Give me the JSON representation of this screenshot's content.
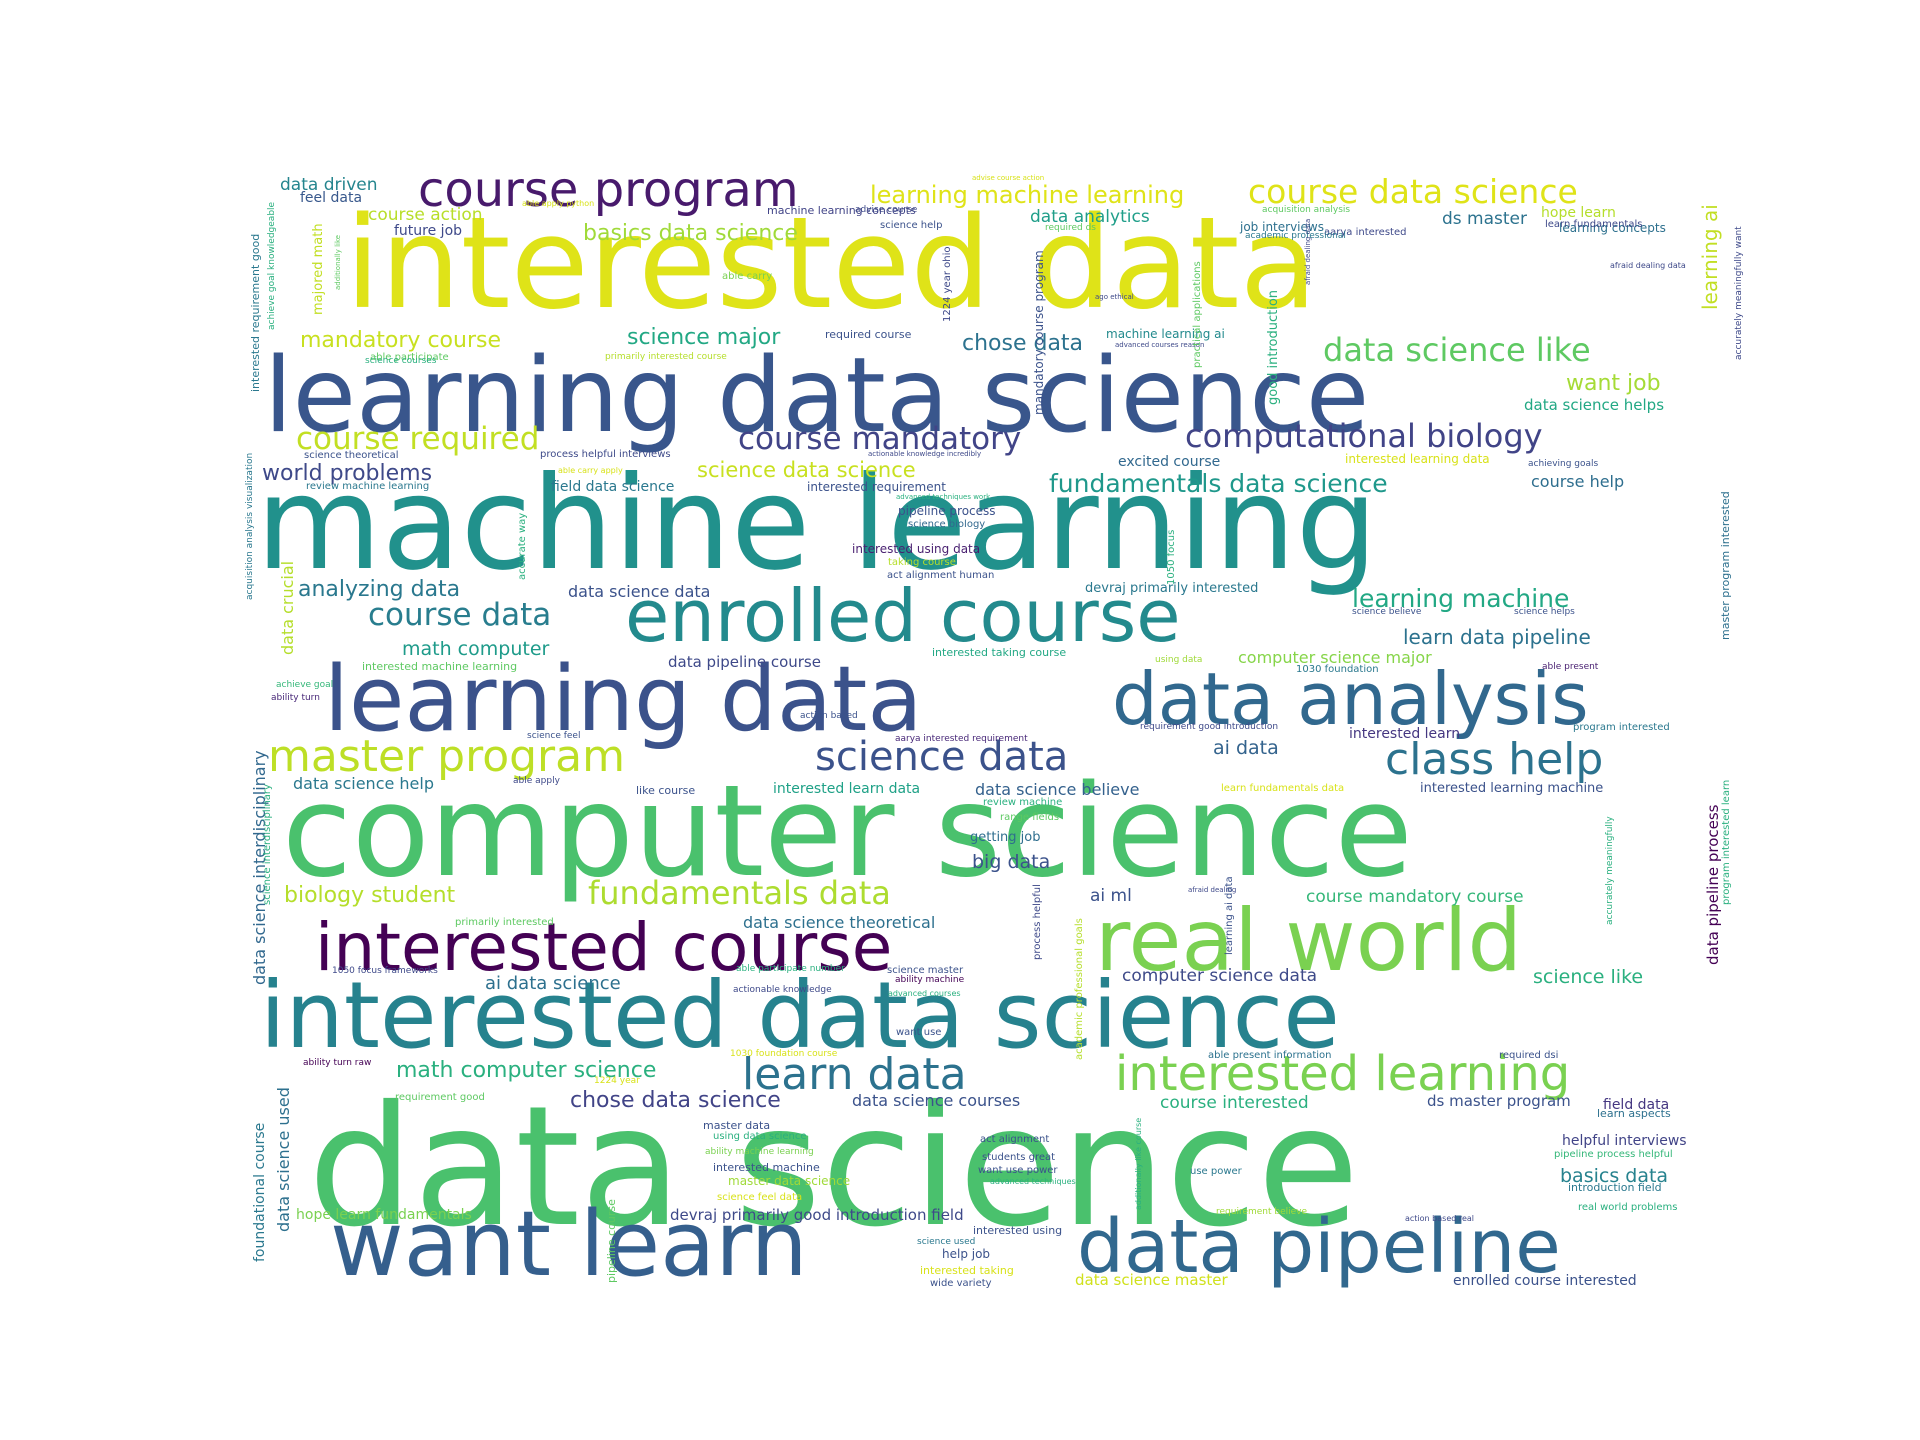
{
  "cloud": {
    "words": [
      {
        "text": "interested data",
        "color": "#dfe318"
      },
      {
        "text": "machine learning",
        "color": "#21918c"
      },
      {
        "text": "computer science",
        "color": "#4ac16d"
      },
      {
        "text": "data science",
        "color": "#4ac16d"
      },
      {
        "text": "learning data science",
        "color": "#39568c"
      },
      {
        "text": "interested data science",
        "color": "#26828e"
      },
      {
        "text": "learning data",
        "color": "#3b528b"
      },
      {
        "text": "want learn",
        "color": "#355f8d"
      },
      {
        "text": "enrolled course",
        "color": "#238a8d"
      },
      {
        "text": "data analysis",
        "color": "#31688e"
      },
      {
        "text": "real world",
        "color": "#7ad151"
      },
      {
        "text": "data pipeline",
        "color": "#31688e"
      },
      {
        "text": "interested course",
        "color": "#440154"
      },
      {
        "text": "course program",
        "color": "#481a6c"
      },
      {
        "text": "interested learning",
        "color": "#7ad151"
      },
      {
        "text": "master program",
        "color": "#bddf26"
      },
      {
        "text": "learn data",
        "color": "#2c728e"
      },
      {
        "text": "science data",
        "color": "#3b528b"
      },
      {
        "text": "class help",
        "color": "#2c728e"
      },
      {
        "text": "course data science",
        "color": "#dfe318"
      },
      {
        "text": "data science like",
        "color": "#5ec962"
      },
      {
        "text": "computational biology",
        "color": "#414487"
      },
      {
        "text": "course mandatory",
        "color": "#414487"
      },
      {
        "text": "course required",
        "color": "#c2df23"
      },
      {
        "text": "fundamentals data",
        "color": "#addc30"
      },
      {
        "text": "course data",
        "color": "#287d8e"
      },
      {
        "text": "fundamentals data science",
        "color": "#1f988b"
      },
      {
        "text": "learning machine learning",
        "color": "#dfe318"
      },
      {
        "text": "chose data science",
        "color": "#414487"
      },
      {
        "text": "math computer science",
        "color": "#2ab07f"
      },
      {
        "text": "learning machine",
        "color": "#22a884"
      },
      {
        "text": "biology student",
        "color": "#b5de2b"
      },
      {
        "text": "analyzing data",
        "color": "#2a788e"
      },
      {
        "text": "world problems",
        "color": "#3e4989"
      },
      {
        "text": "science data science",
        "color": "#c8e020"
      },
      {
        "text": "basics data science",
        "color": "#a0da39"
      },
      {
        "text": "mandatory course",
        "color": "#c8e020"
      },
      {
        "text": "science major",
        "color": "#22a884"
      },
      {
        "text": "chose data",
        "color": "#2c728e"
      },
      {
        "text": "data analytics",
        "color": "#1f9e89"
      },
      {
        "text": "want job",
        "color": "#a5db36"
      },
      {
        "text": "ds master",
        "color": "#2c728e"
      },
      {
        "text": "data driven",
        "color": "#25858e"
      },
      {
        "text": "course action",
        "color": "#b8de29"
      },
      {
        "text": "future job",
        "color": "#3e4989"
      },
      {
        "text": "feel data",
        "color": "#38588c"
      },
      {
        "text": "data science help",
        "color": "#2a788e"
      },
      {
        "text": "math computer",
        "color": "#1e9b8a"
      },
      {
        "text": "data science data",
        "color": "#3b528b"
      },
      {
        "text": "data pipeline course",
        "color": "#3e4989"
      },
      {
        "text": "learn data pipeline",
        "color": "#2c728e"
      },
      {
        "text": "computer science major",
        "color": "#86d549"
      },
      {
        "text": "ai data",
        "color": "#33638d"
      },
      {
        "text": "data science believe",
        "color": "#34618d"
      },
      {
        "text": "interested learn data",
        "color": "#1fa187"
      },
      {
        "text": "interested learning machine",
        "color": "#3b528b"
      },
      {
        "text": "interested learn",
        "color": "#453781"
      },
      {
        "text": "big data",
        "color": "#3b528b"
      },
      {
        "text": "getting job",
        "color": "#2e6e8e"
      },
      {
        "text": "ai ml",
        "color": "#3b528b"
      },
      {
        "text": "course mandatory course",
        "color": "#35b779"
      },
      {
        "text": "data science theoretical",
        "color": "#2d708e"
      },
      {
        "text": "computer science data",
        "color": "#3e4a89"
      },
      {
        "text": "ai data science",
        "color": "#2d708e"
      },
      {
        "text": "science like",
        "color": "#2ab07f"
      },
      {
        "text": "course interested",
        "color": "#2ab07f"
      },
      {
        "text": "ds master program",
        "color": "#3b528b"
      },
      {
        "text": "field data",
        "color": "#453781"
      },
      {
        "text": "data science courses",
        "color": "#3b528b"
      },
      {
        "text": "basics data",
        "color": "#26828e"
      },
      {
        "text": "helpful interviews",
        "color": "#414487"
      },
      {
        "text": "hope learn fundamentals",
        "color": "#7ad151"
      },
      {
        "text": "devraj primarily good introduction field",
        "color": "#3e4989"
      },
      {
        "text": "data science master",
        "color": "#d0e11c"
      },
      {
        "text": "enrolled course interested",
        "color": "#3b528b"
      },
      {
        "text": "course help",
        "color": "#2e6e8e"
      },
      {
        "text": "excited course",
        "color": "#31688e"
      },
      {
        "text": "devraj primarily interested",
        "color": "#2a788e"
      },
      {
        "text": "pipeline process",
        "color": "#3b528b"
      },
      {
        "text": "interested using data",
        "color": "#481f70"
      },
      {
        "text": "field data science",
        "color": "#2a788e"
      },
      {
        "text": "interested requirement",
        "color": "#3b528b"
      },
      {
        "text": "job interviews",
        "color": "#2d708e"
      },
      {
        "text": "hope learn",
        "color": "#b5de2b"
      },
      {
        "text": "learning concepts",
        "color": "#2d708e"
      },
      {
        "text": "machine learning ai",
        "color": "#238a8d"
      },
      {
        "text": "required course",
        "color": "#3b528b"
      },
      {
        "text": "interested learning data",
        "color": "#d8e219"
      },
      {
        "text": "data science helps",
        "color": "#22a884"
      },
      {
        "text": "review machine learning",
        "color": "#2a788e"
      },
      {
        "text": "process helpful interviews",
        "color": "#3e4a89"
      },
      {
        "text": "science theoretical",
        "color": "#3b528b"
      },
      {
        "text": "machine learning concepts",
        "color": "#414487"
      },
      {
        "text": "science help",
        "color": "#3b528b"
      },
      {
        "text": "able carry",
        "color": "#7ad151"
      },
      {
        "text": "able participate",
        "color": "#5ec962"
      },
      {
        "text": "primarily interested course",
        "color": "#b5de2b"
      },
      {
        "text": "taking course",
        "color": "#b5de2b"
      },
      {
        "text": "act alignment human",
        "color": "#3b528b"
      },
      {
        "text": "science biology",
        "color": "#31688e"
      },
      {
        "text": "interested taking course",
        "color": "#22a884"
      },
      {
        "text": "interested machine learning",
        "color": "#5ec962"
      },
      {
        "text": "1030 foundation",
        "color": "#2a788e"
      },
      {
        "text": "science feel",
        "color": "#3b528b"
      },
      {
        "text": "able apply",
        "color": "#3e4989"
      },
      {
        "text": "like course",
        "color": "#3b528b"
      },
      {
        "text": "review machine",
        "color": "#2ab07f"
      },
      {
        "text": "range fields",
        "color": "#5ec962"
      },
      {
        "text": "requirement good introduction",
        "color": "#3e4989"
      },
      {
        "text": "aarya interested requirement",
        "color": "#482878"
      },
      {
        "text": "learn fundamentals data",
        "color": "#d8e219"
      },
      {
        "text": "achieve goal",
        "color": "#35b779"
      },
      {
        "text": "ability turn",
        "color": "#482878"
      },
      {
        "text": "action based",
        "color": "#3b528b"
      },
      {
        "text": "using data",
        "color": "#a0da39"
      },
      {
        "text": "able present",
        "color": "#481f70"
      },
      {
        "text": "program interested",
        "color": "#2a788e"
      },
      {
        "text": "1050 focus frameworks",
        "color": "#3e4989"
      },
      {
        "text": "able participate number",
        "color": "#2ab07f"
      },
      {
        "text": "actionable knowledge",
        "color": "#3e4989"
      },
      {
        "text": "science master",
        "color": "#3b528b"
      },
      {
        "text": "ability machine",
        "color": "#440154"
      },
      {
        "text": "primarily interested",
        "color": "#5ec962"
      },
      {
        "text": "advanced courses",
        "color": "#2ab07f"
      },
      {
        "text": "want use",
        "color": "#3b528b"
      },
      {
        "text": "able present information",
        "color": "#2c728e"
      },
      {
        "text": "required dsi",
        "color": "#3b528b"
      },
      {
        "text": "ability turn raw",
        "color": "#440154"
      },
      {
        "text": "requirement good",
        "color": "#5ec962"
      },
      {
        "text": "master data",
        "color": "#3b528b"
      },
      {
        "text": "using data science",
        "color": "#2ab07f"
      },
      {
        "text": "ability machine learning",
        "color": "#7ad151"
      },
      {
        "text": "interested machine",
        "color": "#3b528b"
      },
      {
        "text": "master data science",
        "color": "#a0da39"
      },
      {
        "text": "science feel data",
        "color": "#d8e219"
      },
      {
        "text": "act alignment",
        "color": "#3b528b"
      },
      {
        "text": "students great",
        "color": "#3b528b"
      },
      {
        "text": "want use power",
        "color": "#3b528b"
      },
      {
        "text": "advanced techniques",
        "color": "#2ab07f"
      },
      {
        "text": "interested using",
        "color": "#3b528b"
      },
      {
        "text": "science used",
        "color": "#2a788e"
      },
      {
        "text": "help job",
        "color": "#3b528b"
      },
      {
        "text": "interested taking",
        "color": "#d8e219"
      },
      {
        "text": "wide variety",
        "color": "#3b528b"
      },
      {
        "text": "use power",
        "color": "#2a788e"
      },
      {
        "text": "requirement believe",
        "color": "#a0da39"
      },
      {
        "text": "action based real",
        "color": "#3e4989"
      },
      {
        "text": "real world problems",
        "color": "#2ab07f"
      },
      {
        "text": "learn aspects",
        "color": "#2d708e"
      },
      {
        "text": "pipeline process helpful",
        "color": "#35b779"
      },
      {
        "text": "introduction field",
        "color": "#2a788e"
      },
      {
        "text": "1030 foundation course",
        "color": "#d8e219"
      },
      {
        "text": "1224 year",
        "color": "#d8e219"
      },
      {
        "text": "able apply python",
        "color": "#d8e219"
      },
      {
        "text": "advise course action",
        "color": "#d8e219"
      },
      {
        "text": "advise course",
        "color": "#3e4989"
      },
      {
        "text": "acquisition analysis",
        "color": "#5ec962"
      },
      {
        "text": "aarya interested",
        "color": "#3e4989"
      },
      {
        "text": "academic professional",
        "color": "#2a788e"
      },
      {
        "text": "required ds",
        "color": "#5ec962"
      },
      {
        "text": "afraid dealing data",
        "color": "#3e4989"
      },
      {
        "text": "ago ethical",
        "color": "#3e4989"
      },
      {
        "text": "advanced courses reason",
        "color": "#3e4989"
      },
      {
        "text": "able carry apply",
        "color": "#d8e219"
      },
      {
        "text": "actionable knowledge incredibly",
        "color": "#3e4989"
      },
      {
        "text": "advanced techniques work",
        "color": "#2ab07f"
      },
      {
        "text": "achieving goals",
        "color": "#3b528b"
      },
      {
        "text": "science believe",
        "color": "#3b528b"
      },
      {
        "text": "science helps",
        "color": "#3b528b"
      },
      {
        "text": "science courses",
        "color": "#2ab07f"
      },
      {
        "text": "learn fundamentals",
        "color": "#3e4989"
      },
      {
        "text": "afraid dealing",
        "color": "#3e4989"
      },
      {
        "text": "interested requirement good",
        "color": "#2a788e"
      },
      {
        "text": "majored math",
        "color": "#c2df23"
      },
      {
        "text": "achieve goal knowledgeable",
        "color": "#2ab07f"
      },
      {
        "text": "additionally like",
        "color": "#5ec962"
      },
      {
        "text": "acquisition analysis visualization",
        "color": "#2a788e"
      },
      {
        "text": "data crucial",
        "color": "#b5de2b"
      },
      {
        "text": "accurate way",
        "color": "#2ab07f"
      },
      {
        "text": "data science interdisciplinary",
        "color": "#31688e"
      },
      {
        "text": "science interdisciplinary",
        "color": "#2ab07f"
      },
      {
        "text": "data science used",
        "color": "#2d708e"
      },
      {
        "text": "foundational course",
        "color": "#2a788e"
      },
      {
        "text": "pipeline course",
        "color": "#5ec962"
      },
      {
        "text": "1224 year ohio",
        "color": "#3e4989"
      },
      {
        "text": "mandatory course program",
        "color": "#3b528b"
      },
      {
        "text": "good introduction",
        "color": "#2ab07f"
      },
      {
        "text": "1050 focus",
        "color": "#2ab07f"
      },
      {
        "text": "process helpful",
        "color": "#3e4989"
      },
      {
        "text": "academic professional goals",
        "color": "#b5de2b"
      },
      {
        "text": "additionally like course",
        "color": "#2ab07f"
      },
      {
        "text": "learning ai data",
        "color": "#3b528b"
      },
      {
        "text": "practical applications",
        "color": "#5ec962"
      },
      {
        "text": "learning ai",
        "color": "#c2df23"
      },
      {
        "text": "afraid dealing data",
        "color": "#3e4989"
      },
      {
        "text": "accurately meaningfully want",
        "color": "#3e4989"
      },
      {
        "text": "master program interested",
        "color": "#2d708e"
      },
      {
        "text": "data pipeline process",
        "color": "#440154"
      },
      {
        "text": "program interested learn",
        "color": "#2ab07f"
      },
      {
        "text": "accurately meaningfully",
        "color": "#2ab07f"
      }
    ]
  }
}
